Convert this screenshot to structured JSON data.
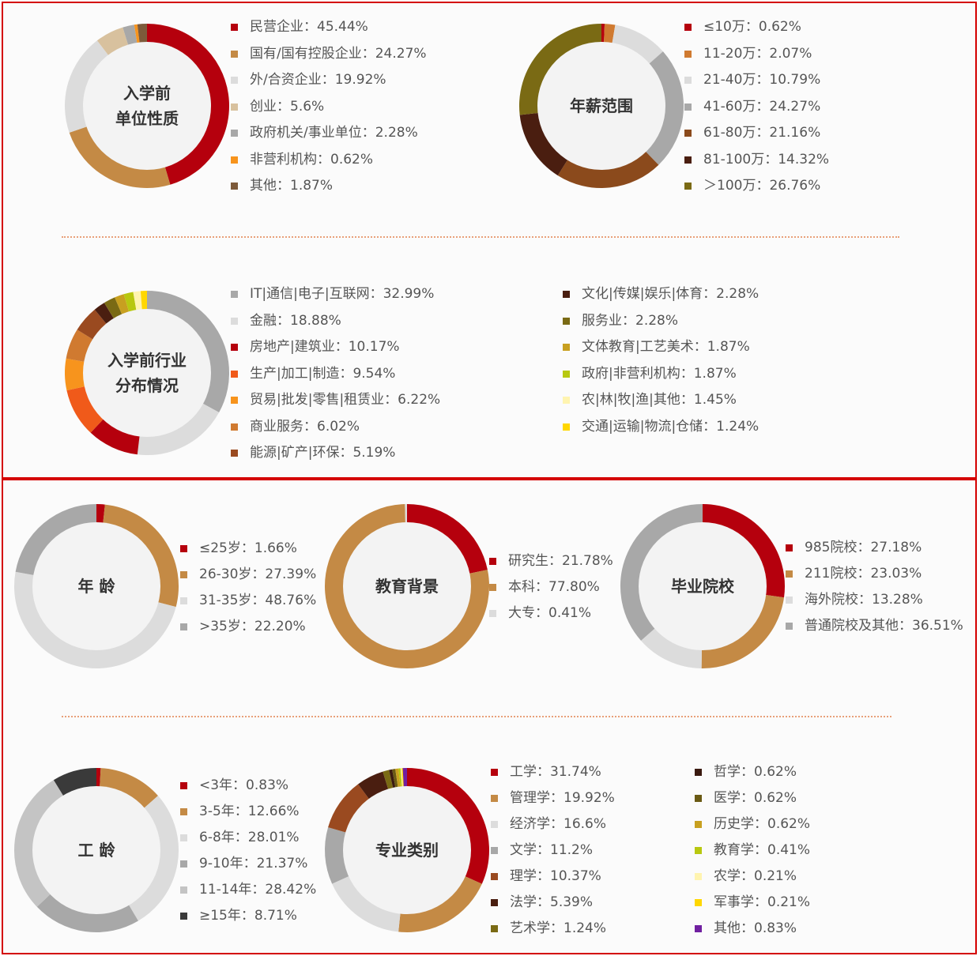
{
  "chart_data": [
    {
      "id": "unit",
      "type": "pie",
      "title": "入学前单位性质",
      "title_lines": [
        "入学前",
        "单位性质"
      ],
      "series": [
        {
          "label": "民营企业：45.44%",
          "value": 45.44,
          "color": "#b5000d"
        },
        {
          "label": "国有/国有控股企业：24.27%",
          "value": 24.27,
          "color": "#c48a45"
        },
        {
          "label": "外/合资企业：19.92%",
          "value": 19.92,
          "color": "#dcdcdc"
        },
        {
          "label": "创业：5.6%",
          "value": 5.6,
          "color": "#d8c19e"
        },
        {
          "label": "政府机关/事业单位：2.28%",
          "value": 2.28,
          "color": "#a8a8a8"
        },
        {
          "label": "非营利机构：0.62%",
          "value": 0.62,
          "color": "#f7941d"
        },
        {
          "label": "其他：1.87%",
          "value": 1.87,
          "color": "#7d5a3a"
        }
      ]
    },
    {
      "id": "salary",
      "type": "pie",
      "title": "年薪范围",
      "title_lines": [
        "年薪范围"
      ],
      "series": [
        {
          "label": "≤10万：0.62%",
          "value": 0.62,
          "color": "#b5000d"
        },
        {
          "label": "11-20万：2.07%",
          "value": 2.07,
          "color": "#d07a30"
        },
        {
          "label": "21-40万：10.79%",
          "value": 10.79,
          "color": "#dcdcdc"
        },
        {
          "label": "41-60万：24.27%",
          "value": 24.27,
          "color": "#a8a8a8"
        },
        {
          "label": "61-80万：21.16%",
          "value": 21.16,
          "color": "#8b4a1c"
        },
        {
          "label": "81-100万：14.32%",
          "value": 14.32,
          "color": "#4a1e10"
        },
        {
          "label": "＞100万：26.76%",
          "value": 26.76,
          "color": "#7a6a14"
        }
      ]
    },
    {
      "id": "industry",
      "type": "pie",
      "title": "入学前行业分布情况",
      "title_lines": [
        "入学前行业",
        "分布情况"
      ],
      "series": [
        {
          "label": "IT|通信|电子|互联网：32.99%",
          "value": 32.99,
          "color": "#a8a8a8"
        },
        {
          "label": "金融：18.88%",
          "value": 18.88,
          "color": "#dcdcdc"
        },
        {
          "label": "房地产|建筑业：10.17%",
          "value": 10.17,
          "color": "#b5000d"
        },
        {
          "label": "生产|加工|制造：9.54%",
          "value": 9.54,
          "color": "#f05a1a"
        },
        {
          "label": "贸易|批发|零售|租赁业：6.22%",
          "value": 6.22,
          "color": "#f7941d"
        },
        {
          "label": "商业服务：6.02%",
          "value": 6.02,
          "color": "#d07a30"
        },
        {
          "label": "能源|矿产|环保：5.19%",
          "value": 5.19,
          "color": "#9a4a20"
        },
        {
          "label": "文化|传媒|娱乐|体育：2.28%",
          "value": 2.28,
          "color": "#4a1e10"
        },
        {
          "label": "服务业：2.28%",
          "value": 2.28,
          "color": "#7a6a14"
        },
        {
          "label": "文体教育|工艺美术：1.87%",
          "value": 1.87,
          "color": "#c8a020"
        },
        {
          "label": "政府|非营利机构：1.87%",
          "value": 1.87,
          "color": "#b8c810"
        },
        {
          "label": "农|林|牧|渔|其他：1.45%",
          "value": 1.45,
          "color": "#fff4b0"
        },
        {
          "label": "交通|运输|物流|仓储：1.24%",
          "value": 1.24,
          "color": "#ffd700"
        }
      ]
    },
    {
      "id": "age",
      "type": "pie",
      "title": "年 龄",
      "title_lines": [
        "年 龄"
      ],
      "series": [
        {
          "label": "≤25岁：1.66%",
          "value": 1.66,
          "color": "#b5000d"
        },
        {
          "label": "26-30岁：27.39%",
          "value": 27.39,
          "color": "#c48a45"
        },
        {
          "label": "31-35岁：48.76%",
          "value": 48.76,
          "color": "#dcdcdc"
        },
        {
          "label": ">35岁：22.20%",
          "value": 22.2,
          "color": "#a8a8a8"
        }
      ]
    },
    {
      "id": "education",
      "type": "pie",
      "title": "教育背景",
      "title_lines": [
        "教育背景"
      ],
      "series": [
        {
          "label": "研究生：21.78%",
          "value": 21.78,
          "color": "#b5000d"
        },
        {
          "label": "本科：77.80%",
          "value": 77.8,
          "color": "#c48a45"
        },
        {
          "label": "大专：0.41%",
          "value": 0.41,
          "color": "#dcdcdc"
        }
      ]
    },
    {
      "id": "school",
      "type": "pie",
      "title": "毕业院校",
      "title_lines": [
        "毕业院校"
      ],
      "series": [
        {
          "label": "985院校：27.18%",
          "value": 27.18,
          "color": "#b5000d"
        },
        {
          "label": "211院校：23.03%",
          "value": 23.03,
          "color": "#c48a45"
        },
        {
          "label": "海外院校：13.28%",
          "value": 13.28,
          "color": "#dcdcdc"
        },
        {
          "label": "普通院校及其他：36.51%",
          "value": 36.51,
          "color": "#a8a8a8"
        }
      ]
    },
    {
      "id": "work",
      "type": "pie",
      "title": "工 龄",
      "title_lines": [
        "工 龄"
      ],
      "series": [
        {
          "label": "<3年：0.83%",
          "value": 0.83,
          "color": "#b5000d"
        },
        {
          "label": "3-5年：12.66%",
          "value": 12.66,
          "color": "#c48a45"
        },
        {
          "label": "6-8年：28.01%",
          "value": 28.01,
          "color": "#dcdcdc"
        },
        {
          "label": "9-10年：21.37%",
          "value": 21.37,
          "color": "#a8a8a8"
        },
        {
          "label": "11-14年：28.42%",
          "value": 28.42,
          "color": "#c4c4c4"
        },
        {
          "label": "≥15年：8.71%",
          "value": 8.71,
          "color": "#3a3a3a"
        }
      ]
    },
    {
      "id": "major",
      "type": "pie",
      "title": "专业类别",
      "title_lines": [
        "专业类别"
      ],
      "series": [
        {
          "label": "工学：31.74%",
          "value": 31.74,
          "color": "#b5000d"
        },
        {
          "label": "管理学：19.92%",
          "value": 19.92,
          "color": "#c48a45"
        },
        {
          "label": "经济学：16.6%",
          "value": 16.6,
          "color": "#dcdcdc"
        },
        {
          "label": "文学：11.2%",
          "value": 11.2,
          "color": "#a8a8a8"
        },
        {
          "label": "理学：10.37%",
          "value": 10.37,
          "color": "#9a4a20"
        },
        {
          "label": "法学：5.39%",
          "value": 5.39,
          "color": "#4a1e10"
        },
        {
          "label": "艺术学：1.24%",
          "value": 1.24,
          "color": "#7a6a14"
        },
        {
          "label": "哲学：0.62%",
          "value": 0.62,
          "color": "#3a1a10"
        },
        {
          "label": "医学：0.62%",
          "value": 0.62,
          "color": "#6a5a14"
        },
        {
          "label": "历史学：0.62%",
          "value": 0.62,
          "color": "#c8a020"
        },
        {
          "label": "教育学：0.41%",
          "value": 0.41,
          "color": "#b8c810"
        },
        {
          "label": "农学：0.21%",
          "value": 0.21,
          "color": "#fff4b0"
        },
        {
          "label": "军事学：0.21%",
          "value": 0.21,
          "color": "#ffd700"
        },
        {
          "label": "其他：0.83%",
          "value": 0.83,
          "color": "#7020a0"
        }
      ]
    }
  ]
}
